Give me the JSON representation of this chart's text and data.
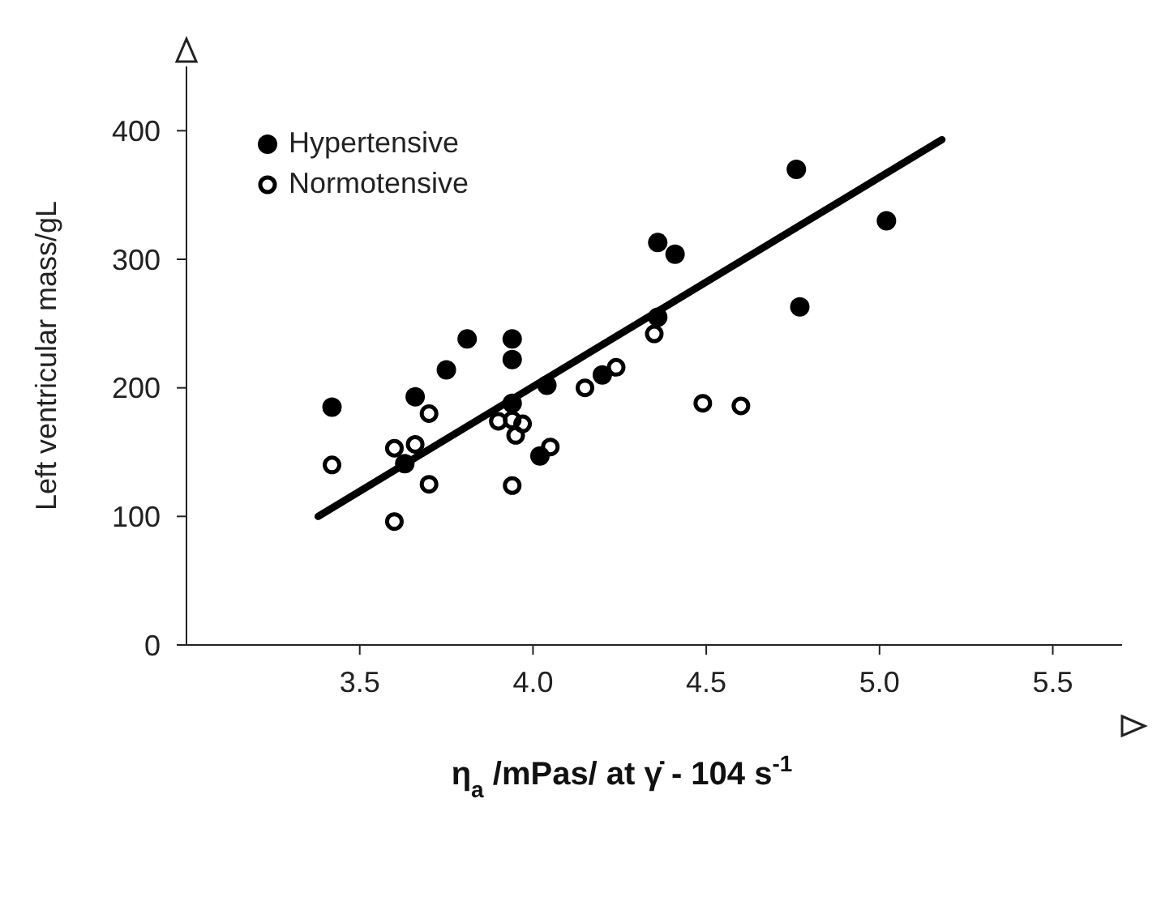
{
  "chart_data": {
    "type": "scatter",
    "xlabel": "η$_{a}$ /mPas/  at γ̇ - 104 s$^{-1}$",
    "ylabel": "Left ventricular mass/gL",
    "xlim": [
      3.0,
      5.7
    ],
    "xticks": [
      3.5,
      {
        "value": 4.0,
        "label": "4.0"
      },
      4.5,
      {
        "value": 5.0,
        "label": "5.0"
      },
      5.5
    ],
    "ylim": [
      0,
      450
    ],
    "yticks": [
      {
        "value": 0,
        "label": "0"
      },
      100,
      200,
      300,
      400
    ],
    "grid": false,
    "legend": "top left",
    "series": [
      {
        "name": "Hypertensive",
        "color": "#000000",
        "marker": "circle",
        "x": [
          3.42,
          3.66,
          3.75,
          3.81,
          3.94,
          3.94,
          3.63,
          4.04,
          3.94,
          4.02,
          4.2,
          4.36,
          4.36,
          4.41,
          4.76,
          5.02,
          4.77
        ],
        "values": [
          185,
          193,
          214,
          238,
          238,
          222,
          141,
          202,
          188,
          147,
          210,
          255,
          313,
          304,
          370,
          330,
          263
        ]
      },
      {
        "name": "Normotensive",
        "color": "#000000",
        "marker": "circle",
        "x": [
          3.42,
          3.6,
          3.6,
          3.66,
          3.7,
          3.7,
          3.9,
          3.94,
          3.97,
          3.95,
          3.94,
          4.05,
          4.15,
          4.24,
          4.35,
          4.49,
          4.6
        ],
        "values": [
          140,
          96,
          153,
          156,
          180,
          125,
          174,
          175,
          172,
          163,
          124,
          154,
          200,
          216,
          242,
          188,
          186
        ]
      },
      {
        "type": "line",
        "color": "#000000",
        "marker": "none",
        "line_style": "solid",
        "x": [
          3.38,
          5.18
        ],
        "values": [
          100,
          393
        ]
      }
    ]
  }
}
